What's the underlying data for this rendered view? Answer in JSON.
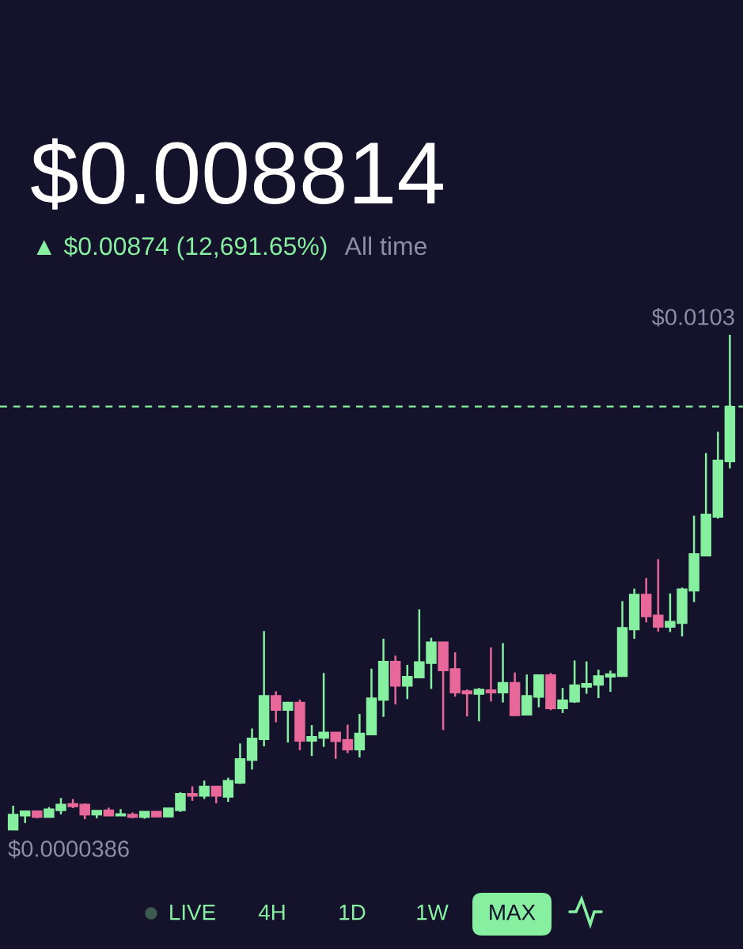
{
  "chart_data": {
    "type": "candlestick",
    "title": "$0.008814",
    "subtitle": "▲ $0.00874 (12,691.65%)",
    "annotations": [
      "$0.0103",
      "$0.0000386",
      "All time",
      "LIVE",
      "4H",
      "1D",
      "1W",
      "MAX"
    ],
    "categories": [
      null,
      null,
      null,
      null,
      null,
      null,
      null,
      null,
      null,
      null,
      null,
      null,
      null,
      null,
      null,
      null,
      null,
      null,
      null,
      null,
      null,
      null,
      null,
      null,
      null,
      null,
      null,
      null,
      null,
      null,
      null,
      null,
      null,
      null,
      null,
      null,
      null,
      null,
      null,
      null,
      null,
      null,
      null,
      null,
      null,
      null,
      null,
      null,
      null,
      null,
      null,
      null,
      null,
      null,
      null,
      null,
      null,
      null,
      null,
      null,
      null
    ],
    "ohlc": [
      [
        3.86e-05,
        0.00054,
        3.86e-05,
        0.00036
      ],
      [
        0.00033,
        0.00043,
        0.00018,
        0.00043
      ],
      [
        0.00043,
        0.00043,
        0.00028,
        0.0003
      ],
      [
        0.0003,
        0.00051,
        0.0003,
        0.00047
      ],
      [
        0.00044,
        0.0007,
        0.00036,
        0.00057
      ],
      [
        0.00058,
        0.00068,
        0.00049,
        0.00052
      ],
      [
        0.00057,
        0.00059,
        0.00026,
        0.00035
      ],
      [
        0.00035,
        0.00044,
        0.00028,
        0.00044
      ],
      [
        0.00045,
        0.0005,
        0.00033,
        0.00033
      ],
      [
        0.00033,
        0.00047,
        0.00033,
        0.00037
      ],
      [
        0.00036,
        0.0004,
        0.00028,
        0.0003
      ],
      [
        0.0003,
        0.00042,
        0.00027,
        0.00042
      ],
      [
        0.00042,
        0.00042,
        0.00031,
        0.00031
      ],
      [
        0.00031,
        0.00049,
        0.00031,
        0.00049
      ],
      [
        0.00044,
        0.00082,
        0.00041,
        0.00079
      ],
      [
        0.00079,
        0.00094,
        0.00064,
        0.00074
      ],
      [
        0.00074,
        0.00106,
        0.00068,
        0.00094
      ],
      [
        0.00094,
        0.00094,
        0.00059,
        0.00074
      ],
      [
        0.00072,
        0.00112,
        0.00062,
        0.00106
      ],
      [
        0.00101,
        0.00183,
        0.00099,
        0.00151
      ],
      [
        0.00148,
        0.00214,
        0.00129,
        0.00194
      ],
      [
        0.00191,
        0.00416,
        0.00177,
        0.00282
      ],
      [
        0.00282,
        0.00291,
        0.00227,
        0.00252
      ],
      [
        0.00252,
        0.00269,
        0.00185,
        0.00268
      ],
      [
        0.00268,
        0.00274,
        0.00169,
        0.00188
      ],
      [
        0.00188,
        0.00221,
        0.00157,
        0.00197
      ],
      [
        0.00194,
        0.00329,
        0.00176,
        0.00206
      ],
      [
        0.00206,
        0.00206,
        0.00151,
        0.00187
      ],
      [
        0.00191,
        0.00222,
        0.00163,
        0.0017
      ],
      [
        0.0017,
        0.00244,
        0.00154,
        0.00204
      ],
      [
        0.00201,
        0.00338,
        0.00201,
        0.00277
      ],
      [
        0.00273,
        0.004,
        0.00238,
        0.00353
      ],
      [
        0.00353,
        0.00365,
        0.00264,
        0.00302
      ],
      [
        0.00302,
        0.00346,
        0.00275,
        0.00322
      ],
      [
        0.00319,
        0.00461,
        0.00319,
        0.00352
      ],
      [
        0.00349,
        0.00402,
        0.00296,
        0.00393
      ],
      [
        0.00393,
        0.00393,
        0.00211,
        0.00334
      ],
      [
        0.00338,
        0.00372,
        0.0028,
        0.00288
      ],
      [
        0.00292,
        0.00295,
        0.00239,
        0.00286
      ],
      [
        0.00285,
        0.00298,
        0.00229,
        0.00295
      ],
      [
        0.00294,
        0.00382,
        0.0027,
        0.00288
      ],
      [
        0.00288,
        0.00391,
        0.00268,
        0.00309
      ],
      [
        0.00309,
        0.0033,
        0.0024,
        0.00241
      ],
      [
        0.00242,
        0.00326,
        0.00242,
        0.00282
      ],
      [
        0.00279,
        0.00325,
        0.00258,
        0.00325
      ],
      [
        0.00325,
        0.00329,
        0.00252,
        0.00255
      ],
      [
        0.00255,
        0.00298,
        0.00246,
        0.00273
      ],
      [
        0.00269,
        0.00355,
        0.00267,
        0.00304
      ],
      [
        0.003,
        0.00353,
        0.00286,
        0.00307
      ],
      [
        0.00304,
        0.00336,
        0.00277,
        0.00323
      ],
      [
        0.00321,
        0.00334,
        0.0029,
        0.00327
      ],
      [
        0.00322,
        0.00478,
        0.00322,
        0.00423
      ],
      [
        0.00419,
        0.00504,
        0.004,
        0.00492
      ],
      [
        0.00492,
        0.00526,
        0.00434,
        0.00446
      ],
      [
        0.00449,
        0.00565,
        0.00415,
        0.00424
      ],
      [
        0.00424,
        0.00494,
        0.00414,
        0.00436
      ],
      [
        0.00432,
        0.00506,
        0.00405,
        0.00503
      ],
      [
        0.00499,
        0.00655,
        0.00476,
        0.00576
      ],
      [
        0.00572,
        0.00785,
        0.00572,
        0.00658
      ],
      [
        0.00652,
        0.00829,
        0.00649,
        0.0077
      ],
      [
        0.00767,
        0.0103,
        0.00753,
        0.008814
      ]
    ],
    "colors": [
      "#86efa0",
      "#86efa0",
      "#e8689a",
      "#86efa0",
      "#86efa0",
      "#e8689a",
      "#e8689a",
      "#86efa0",
      "#e8689a",
      "#86efa0",
      "#e8689a",
      "#86efa0",
      "#e8689a",
      "#86efa0",
      "#86efa0",
      "#e8689a",
      "#86efa0",
      "#e8689a",
      "#86efa0",
      "#86efa0",
      "#86efa0",
      "#86efa0",
      "#e8689a",
      "#86efa0",
      "#e8689a",
      "#86efa0",
      "#86efa0",
      "#e8689a",
      "#e8689a",
      "#86efa0",
      "#86efa0",
      "#86efa0",
      "#e8689a",
      "#86efa0",
      "#86efa0",
      "#86efa0",
      "#e8689a",
      "#e8689a",
      "#e8689a",
      "#86efa0",
      "#e8689a",
      "#86efa0",
      "#e8689a",
      "#86efa0",
      "#86efa0",
      "#e8689a",
      "#86efa0",
      "#86efa0",
      "#86efa0",
      "#86efa0",
      "#86efa0",
      "#86efa0",
      "#86efa0",
      "#e8689a",
      "#e8689a",
      "#86efa0",
      "#86efa0",
      "#86efa0",
      "#86efa0",
      "#86efa0",
      "#86efa0"
    ],
    "ref_lines": [
      {
        "axis": "y",
        "value": 0.008814,
        "color": "#86efa0",
        "line_style": "dashed"
      }
    ],
    "tick_labels": false
  }
}
